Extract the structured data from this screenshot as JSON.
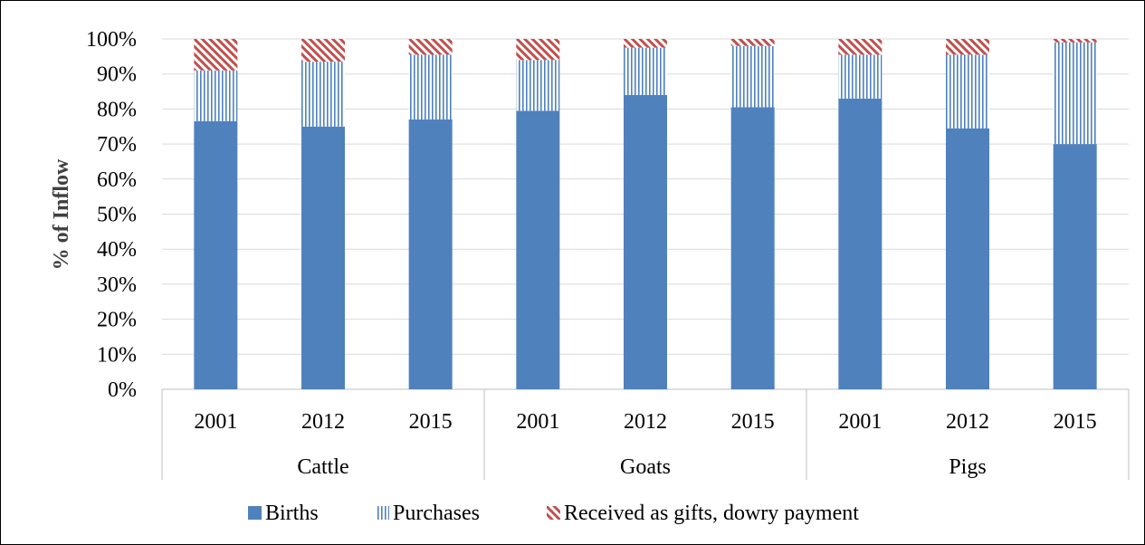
{
  "chart_data": {
    "type": "bar",
    "stacked": true,
    "normalized": true,
    "ylabel": "% of Inflow",
    "xlabel": "",
    "ylim": [
      0,
      100
    ],
    "y_ticks": [
      "0%",
      "10%",
      "20%",
      "30%",
      "40%",
      "50%",
      "60%",
      "70%",
      "80%",
      "90%",
      "100%"
    ],
    "grid": true,
    "legend_position": "bottom",
    "groups": [
      {
        "name": "Cattle",
        "categories": [
          "2001",
          "2012",
          "2015"
        ]
      },
      {
        "name": "Goats",
        "categories": [
          "2001",
          "2012",
          "2015"
        ]
      },
      {
        "name": "Pigs",
        "categories": [
          "2001",
          "2012",
          "2015"
        ]
      }
    ],
    "series": [
      {
        "name": "Births",
        "color": "#4f81bd",
        "pattern": "solid",
        "values": [
          76.5,
          75,
          77,
          79.5,
          84,
          80.5,
          83,
          74.5,
          70
        ]
      },
      {
        "name": "Purchases",
        "color": "#4f81bd",
        "pattern": "vertical-lines",
        "values": [
          14.5,
          18.5,
          18.5,
          14.5,
          13.5,
          17.5,
          12.5,
          21,
          29
        ]
      },
      {
        "name": "Received as gifts, dowry payment",
        "color": "#c0504d",
        "pattern": "diagonal-lines",
        "values": [
          9,
          6.5,
          4.5,
          6,
          2.5,
          2,
          4.5,
          4.5,
          1
        ]
      }
    ]
  }
}
